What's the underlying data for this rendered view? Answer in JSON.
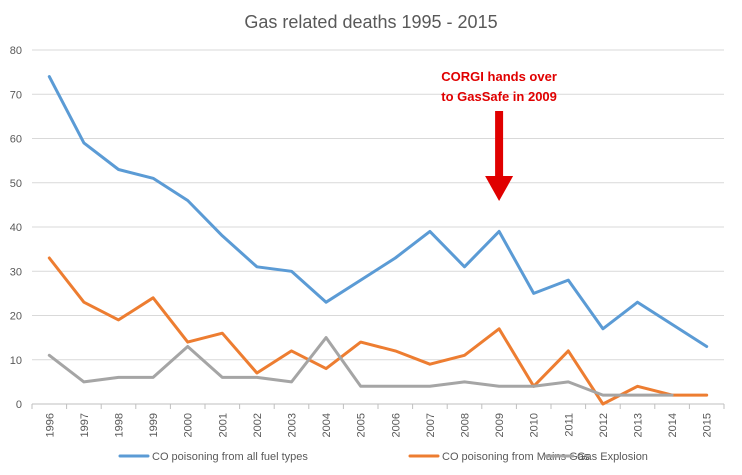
{
  "chart_data": {
    "type": "line",
    "title": "Gas related deaths 1995 - 2015",
    "xlabel": "",
    "ylabel": "",
    "ylim": [
      0,
      80
    ],
    "yticks": [
      0,
      10,
      20,
      30,
      40,
      50,
      60,
      70,
      80
    ],
    "grid": true,
    "legend_position": "bottom",
    "categories": [
      "1996",
      "1997",
      "1998",
      "1999",
      "2000",
      "2001",
      "2002",
      "2003",
      "2004",
      "2005",
      "2006",
      "2007",
      "2008",
      "2009",
      "2010",
      "2011",
      "2012",
      "2013",
      "2014",
      "2015"
    ],
    "series": [
      {
        "name": "CO poisoning from all fuel types",
        "color": "#5b9bd5",
        "values": [
          74,
          59,
          53,
          51,
          46,
          38,
          31,
          30,
          23,
          28,
          33,
          39,
          31,
          39,
          25,
          28,
          17,
          23,
          18,
          13
        ]
      },
      {
        "name": "CO poisoning from Mains Gas",
        "color": "#ed7d31",
        "values": [
          33,
          23,
          19,
          24,
          14,
          16,
          7,
          12,
          8,
          14,
          12,
          9,
          11,
          17,
          4,
          12,
          0,
          4,
          2,
          2
        ]
      },
      {
        "name": "Gas Explosion",
        "color": "#a5a5a5",
        "values": [
          11,
          5,
          6,
          6,
          13,
          6,
          6,
          5,
          15,
          4,
          4,
          4,
          5,
          4,
          4,
          5,
          2,
          2,
          2,
          null
        ]
      }
    ],
    "annotations": [
      {
        "lines": [
          "CORGI hands over",
          "to GasSafe in 2009"
        ],
        "color": "#e00000",
        "points_to": "2009"
      }
    ]
  }
}
